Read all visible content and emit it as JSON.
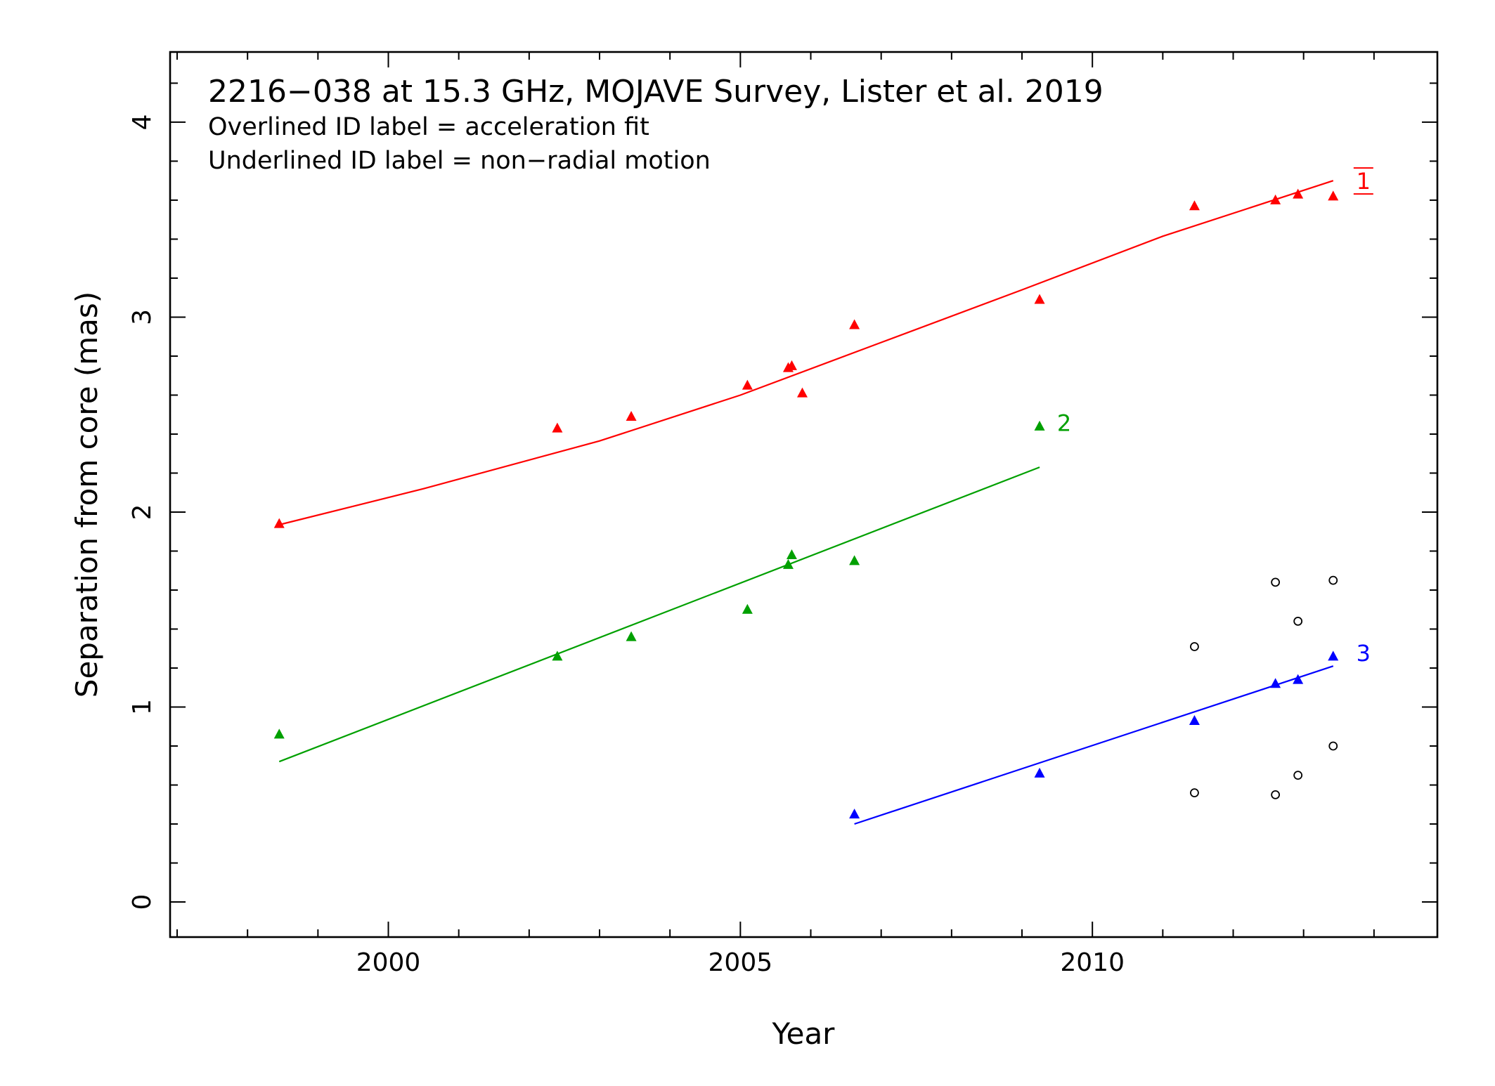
{
  "chart_data": {
    "type": "scatter",
    "title": "2216−038 at 15.3 GHz, MOJAVE Survey, Lister et al. 2019",
    "notes": [
      "Overlined ID label = acceleration fit",
      "Underlined ID label = non−radial motion"
    ],
    "xlabel": "Year",
    "ylabel": "Separation from core (mas)",
    "xlim": [
      1996.9,
      2014.9
    ],
    "ylim": [
      -0.18,
      4.36
    ],
    "x_ticks": [
      2000,
      2005,
      2010
    ],
    "y_ticks": [
      0,
      1,
      2,
      3,
      4
    ],
    "grid": false,
    "series": [
      {
        "name": "1",
        "color": "#ff0000",
        "marker": "triangle",
        "label_style": "overline-underline",
        "points": [
          [
            1998.45,
            1.94
          ],
          [
            2002.4,
            2.43
          ],
          [
            2003.45,
            2.49
          ],
          [
            2005.1,
            2.65
          ],
          [
            2005.68,
            2.74
          ],
          [
            2005.73,
            2.75
          ],
          [
            2005.88,
            2.61
          ],
          [
            2006.62,
            2.96
          ],
          [
            2009.25,
            3.09
          ],
          [
            2011.45,
            3.57
          ],
          [
            2012.6,
            3.6
          ],
          [
            2012.92,
            3.63
          ],
          [
            2013.42,
            3.62
          ]
        ],
        "fit": [
          [
            1998.45,
            1.935
          ],
          [
            2000.5,
            2.12
          ],
          [
            2003.0,
            2.365
          ],
          [
            2005.0,
            2.6
          ],
          [
            2007.0,
            2.87
          ],
          [
            2009.0,
            3.14
          ],
          [
            2011.0,
            3.415
          ],
          [
            2013.42,
            3.7
          ]
        ]
      },
      {
        "name": "2",
        "color": "#00a000",
        "marker": "triangle",
        "label_style": "plain",
        "points": [
          [
            1998.45,
            0.86
          ],
          [
            2002.4,
            1.26
          ],
          [
            2003.45,
            1.36
          ],
          [
            2005.1,
            1.5
          ],
          [
            2005.68,
            1.73
          ],
          [
            2005.73,
            1.78
          ],
          [
            2006.62,
            1.75
          ],
          [
            2009.25,
            2.44
          ]
        ],
        "fit": [
          [
            1998.45,
            0.72
          ],
          [
            2009.25,
            2.23
          ]
        ]
      },
      {
        "name": "3",
        "color": "#0000ff",
        "marker": "triangle",
        "label_style": "plain",
        "points": [
          [
            2006.62,
            0.45
          ],
          [
            2009.25,
            0.66
          ],
          [
            2011.45,
            0.93
          ],
          [
            2012.6,
            1.12
          ],
          [
            2012.92,
            1.14
          ],
          [
            2013.42,
            1.26
          ]
        ],
        "fit": [
          [
            2006.62,
            0.4
          ],
          [
            2013.42,
            1.21
          ]
        ]
      },
      {
        "name": "",
        "color": "#000000",
        "marker": "circle-open",
        "label_style": "none",
        "points": [
          [
            2011.45,
            1.31
          ],
          [
            2011.45,
            0.56
          ],
          [
            2012.6,
            1.64
          ],
          [
            2012.6,
            0.55
          ],
          [
            2012.92,
            1.44
          ],
          [
            2012.92,
            0.65
          ],
          [
            2013.42,
            1.65
          ],
          [
            2013.42,
            0.8
          ]
        ]
      }
    ],
    "series_labels": [
      {
        "text": "1",
        "series": "1",
        "at": [
          2013.85,
          3.7
        ]
      },
      {
        "text": "2",
        "series": "2",
        "at": [
          2009.6,
          2.46
        ]
      },
      {
        "text": "3",
        "series": "3",
        "at": [
          2013.85,
          1.28
        ]
      }
    ]
  }
}
